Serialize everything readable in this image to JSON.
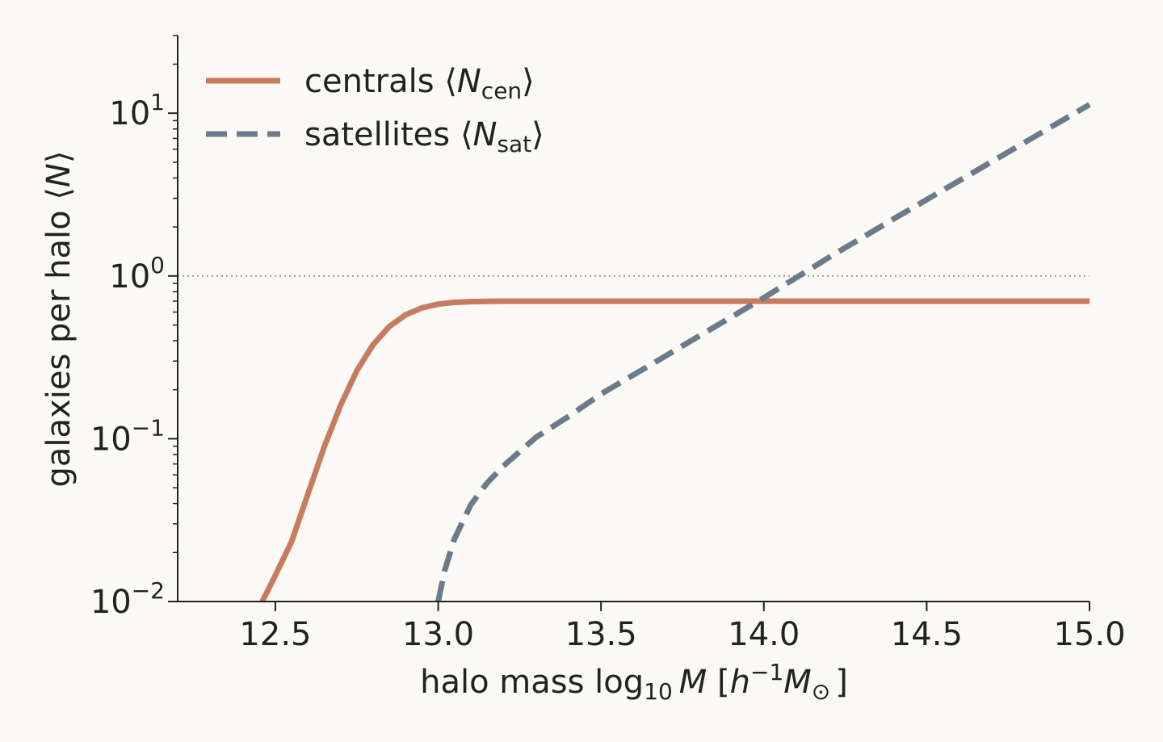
{
  "chart_data": {
    "type": "line",
    "title": "",
    "xlabel": "halo mass log₁₀M [h⁻¹M⊙]",
    "xlabel_parts": {
      "pre": "halo mass log",
      "sub": "10",
      "var": "M",
      "bracket_open": " [",
      "h": "h",
      "sup": "−1",
      "M": "M",
      "sun": "⊙",
      "bracket_close": "]"
    },
    "ylabel": "galaxies per halo ⟨N⟩",
    "ylabel_parts": {
      "pre": "galaxies per halo ⟨",
      "var": "N",
      "post": "⟩"
    },
    "xlim": [
      12.2,
      15.0
    ],
    "ylim": [
      0.01,
      30
    ],
    "yscale": "log",
    "x_ticks": [
      12.5,
      13.0,
      13.5,
      14.0,
      14.5,
      15.0
    ],
    "x_tick_labels": [
      "12.5",
      "13.0",
      "13.5",
      "14.0",
      "14.5",
      "15.0"
    ],
    "y_ticks": [
      {
        "value": 0.01,
        "base": "10",
        "exp": "−2"
      },
      {
        "value": 0.1,
        "base": "10",
        "exp": "−1"
      },
      {
        "value": 1,
        "base": "10",
        "exp": "0"
      },
      {
        "value": 10,
        "base": "10",
        "exp": "1"
      }
    ],
    "reference_line": {
      "y": 1,
      "style": "dotted",
      "color": "#999999"
    },
    "grid": false,
    "legend_position": "top-left",
    "series": [
      {
        "name_pre": "centrals ⟨",
        "name_var": "N",
        "name_sub": "cen",
        "name_post": "⟩",
        "color": "#c97b5e",
        "dash": "solid",
        "x": [
          12.46,
          12.5,
          12.55,
          12.6,
          12.65,
          12.7,
          12.75,
          12.8,
          12.85,
          12.9,
          12.95,
          13.0,
          13.05,
          13.1,
          13.15,
          13.2,
          13.3,
          13.5,
          14.0,
          14.5,
          15.0
        ],
        "y": [
          0.01,
          0.0145,
          0.0234,
          0.0459,
          0.089,
          0.16,
          0.262,
          0.378,
          0.49,
          0.577,
          0.637,
          0.671,
          0.688,
          0.695,
          0.698,
          0.7,
          0.7,
          0.7,
          0.7,
          0.7,
          0.7
        ]
      },
      {
        "name_pre": "satellites ⟨",
        "name_var": "N",
        "name_sub": "sat",
        "name_post": "⟩",
        "color": "#6b7b89",
        "dash": "dashed",
        "x": [
          13.0,
          13.02,
          13.05,
          13.1,
          13.15,
          13.2,
          13.3,
          13.4,
          13.5,
          13.6,
          13.7,
          13.8,
          13.9,
          14.0,
          14.2,
          14.4,
          14.6,
          14.8,
          15.0
        ],
        "y": [
          0.01,
          0.0155,
          0.0243,
          0.0393,
          0.0535,
          0.068,
          0.102,
          0.137,
          0.188,
          0.247,
          0.324,
          0.426,
          0.559,
          0.735,
          1.3,
          2.25,
          3.85,
          6.6,
          11.3
        ]
      }
    ]
  }
}
